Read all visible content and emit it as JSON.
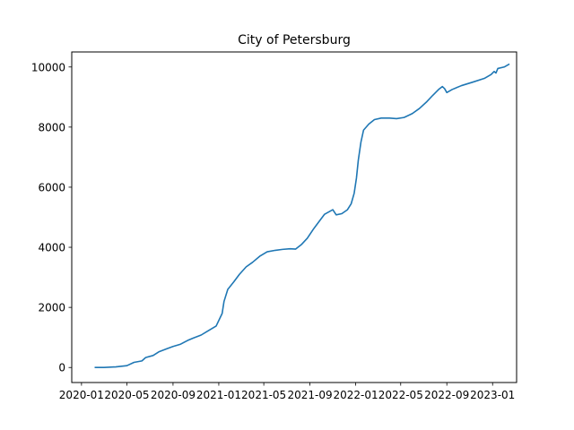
{
  "chart_data": {
    "type": "line",
    "title": "City of Petersburg",
    "xlabel": "",
    "ylabel": "",
    "x_ticks": [
      "2020-01",
      "2020-05",
      "2020-09",
      "2021-01",
      "2021-05",
      "2021-09",
      "2022-01",
      "2022-05",
      "2022-09",
      "2023-01"
    ],
    "y_ticks": [
      "0",
      "2000",
      "4000",
      "6000",
      "8000",
      "10000"
    ],
    "ylim": [
      -500,
      10500
    ],
    "xlim": [
      "2019-12-06",
      "2023-03-06"
    ],
    "grid": false,
    "legend": "none",
    "series": [
      {
        "color": "#1f77b4",
        "points": [
          [
            "2020-02-05",
            0
          ],
          [
            "2020-03-01",
            0
          ],
          [
            "2020-04-01",
            20
          ],
          [
            "2020-05-01",
            60
          ],
          [
            "2020-05-20",
            170
          ],
          [
            "2020-06-10",
            220
          ],
          [
            "2020-06-20",
            330
          ],
          [
            "2020-07-10",
            400
          ],
          [
            "2020-07-25",
            520
          ],
          [
            "2020-08-15",
            620
          ],
          [
            "2020-09-01",
            700
          ],
          [
            "2020-09-20",
            770
          ],
          [
            "2020-10-10",
            900
          ],
          [
            "2020-10-25",
            980
          ],
          [
            "2020-11-15",
            1080
          ],
          [
            "2020-12-01",
            1200
          ],
          [
            "2020-12-25",
            1380
          ],
          [
            "2021-01-10",
            1800
          ],
          [
            "2021-01-15",
            2200
          ],
          [
            "2021-01-25",
            2600
          ],
          [
            "2021-02-10",
            2850
          ],
          [
            "2021-02-25",
            3100
          ],
          [
            "2021-03-15",
            3350
          ],
          [
            "2021-04-01",
            3500
          ],
          [
            "2021-04-20",
            3700
          ],
          [
            "2021-05-10",
            3850
          ],
          [
            "2021-06-01",
            3900
          ],
          [
            "2021-06-20",
            3930
          ],
          [
            "2021-07-10",
            3950
          ],
          [
            "2021-07-25",
            3940
          ],
          [
            "2021-08-10",
            4100
          ],
          [
            "2021-08-25",
            4300
          ],
          [
            "2021-09-10",
            4600
          ],
          [
            "2021-09-25",
            4850
          ],
          [
            "2021-10-10",
            5100
          ],
          [
            "2021-11-01",
            5250
          ],
          [
            "2021-11-10",
            5080
          ],
          [
            "2021-11-25",
            5120
          ],
          [
            "2021-12-10",
            5250
          ],
          [
            "2021-12-20",
            5450
          ],
          [
            "2021-12-28",
            5800
          ],
          [
            "2022-01-03",
            6300
          ],
          [
            "2022-01-08",
            6900
          ],
          [
            "2022-01-15",
            7500
          ],
          [
            "2022-01-22",
            7900
          ],
          [
            "2022-02-05",
            8100
          ],
          [
            "2022-02-20",
            8250
          ],
          [
            "2022-03-10",
            8300
          ],
          [
            "2022-04-01",
            8300
          ],
          [
            "2022-04-20",
            8280
          ],
          [
            "2022-05-10",
            8320
          ],
          [
            "2022-06-01",
            8450
          ],
          [
            "2022-06-20",
            8620
          ],
          [
            "2022-07-10",
            8850
          ],
          [
            "2022-07-25",
            9050
          ],
          [
            "2022-08-10",
            9250
          ],
          [
            "2022-08-20",
            9350
          ],
          [
            "2022-08-26",
            9280
          ],
          [
            "2022-09-01",
            9150
          ],
          [
            "2022-09-15",
            9250
          ],
          [
            "2022-10-10",
            9380
          ],
          [
            "2022-11-10",
            9500
          ],
          [
            "2022-12-10",
            9620
          ],
          [
            "2022-12-28",
            9750
          ],
          [
            "2023-01-05",
            9850
          ],
          [
            "2023-01-10",
            9800
          ],
          [
            "2023-01-15",
            9950
          ],
          [
            "2023-02-01",
            10000
          ],
          [
            "2023-02-15",
            10100
          ]
        ]
      }
    ]
  }
}
